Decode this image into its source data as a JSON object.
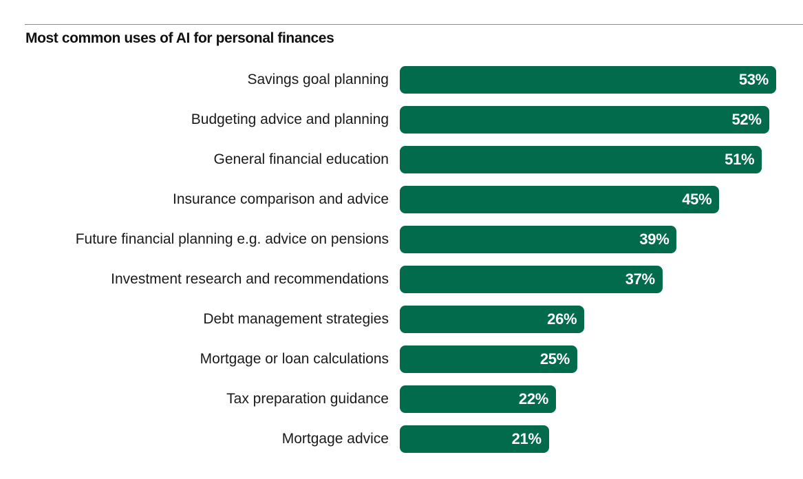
{
  "chart_data": {
    "type": "bar",
    "orientation": "horizontal",
    "title": "Most common uses of AI for personal finances",
    "xlabel": "",
    "ylabel": "",
    "unit": "%",
    "bar_color": "#016b4c",
    "grid": false,
    "legend": null,
    "categories": [
      "Savings goal planning",
      "Budgeting advice and planning",
      "General financial education",
      "Insurance comparison and advice",
      "Future financial planning e.g. advice on pensions",
      "Investment research and recommendations",
      "Debt management strategies",
      "Mortgage or loan calculations",
      "Tax preparation guidance",
      "Mortgage advice"
    ],
    "values": [
      53,
      52,
      51,
      45,
      39,
      37,
      26,
      25,
      22,
      21
    ],
    "value_labels": [
      "53%",
      "52%",
      "51%",
      "45%",
      "39%",
      "37%",
      "26%",
      "25%",
      "22%",
      "21%"
    ]
  }
}
